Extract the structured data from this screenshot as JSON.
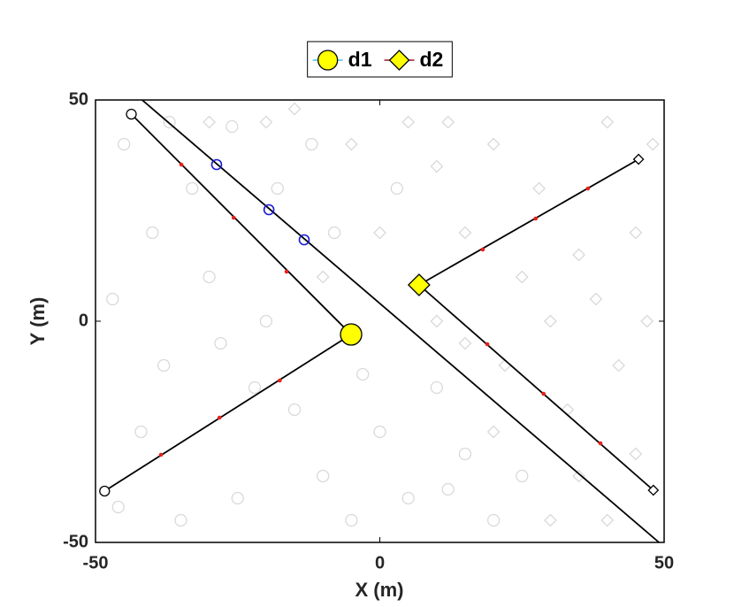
{
  "chart_data": {
    "type": "scatter",
    "xlabel": "X (m)",
    "ylabel": "Y (m)",
    "xlim": [
      -50,
      50
    ],
    "ylim": [
      -50,
      50
    ],
    "xticks": [
      -50,
      0,
      50
    ],
    "yticks": [
      -50,
      0,
      50
    ],
    "legend": "north",
    "background": [
      {
        "marker": "circle",
        "color": "#d9d9d9",
        "x": [
          -45,
          -40,
          -47,
          -38,
          -42,
          -35,
          -30,
          -28,
          -25,
          -20,
          -15,
          -10,
          -5,
          -18,
          -12,
          0,
          5,
          10,
          15,
          20,
          -33,
          -22,
          -8,
          3,
          -46,
          -37,
          12,
          -3,
          25,
          -26
        ],
        "y": [
          40,
          20,
          5,
          -10,
          -25,
          -45,
          10,
          -5,
          -40,
          0,
          -20,
          -35,
          -45,
          30,
          40,
          -25,
          -40,
          -15,
          -30,
          -45,
          30,
          -15,
          20,
          30,
          -42,
          45,
          -38,
          -12,
          -35,
          44
        ]
      },
      {
        "marker": "diamond",
        "color": "#d9d9d9",
        "x": [
          -30,
          -15,
          -5,
          5,
          10,
          15,
          20,
          25,
          30,
          35,
          40,
          45,
          47,
          42,
          35,
          30,
          20,
          15,
          45,
          38,
          0,
          -10,
          28,
          10,
          33,
          48,
          22,
          -20,
          12,
          40
        ],
        "y": [
          45,
          48,
          40,
          45,
          35,
          20,
          40,
          10,
          0,
          15,
          45,
          20,
          0,
          -10,
          -35,
          -45,
          -25,
          -5,
          -30,
          5,
          20,
          10,
          30,
          0,
          -20,
          40,
          -10,
          45,
          45,
          -45
        ]
      }
    ],
    "lines": [
      {
        "color": "#000000",
        "end_marker": "circle",
        "x": [
          -5.05,
          -43.7
        ],
        "y": [
          -3,
          46.8
        ]
      },
      {
        "color": "#000000",
        "end_marker": "circle",
        "x": [
          -5.05,
          -48.4
        ],
        "y": [
          -3,
          -38.4
        ]
      },
      {
        "color": "#000000",
        "end_marker": "diamond",
        "x": [
          6.9,
          45.5
        ],
        "y": [
          8.2,
          36.6
        ]
      },
      {
        "color": "#000000",
        "end_marker": "diamond",
        "x": [
          6.9,
          48.1
        ],
        "y": [
          8.2,
          -38.2
        ]
      },
      {
        "color": "#000000",
        "x": [
          -41.8,
          49.1
        ],
        "y": [
          50,
          -50
        ]
      }
    ],
    "points": [
      {
        "marker": "dot",
        "color": "#e8201a",
        "x": [
          -34.9,
          -25.7,
          -16.4,
          -17.6,
          -28.2,
          -38.5,
          18.1,
          27.4,
          36.6,
          18.9,
          28.8,
          38.8
        ],
        "y": [
          35.4,
          23.4,
          11.2,
          -13.4,
          -21.8,
          -30.2,
          16.2,
          23.2,
          30,
          -5.2,
          -16.4,
          -27.6
        ]
      },
      {
        "marker": "ring",
        "color": "#1a1ad6",
        "x": [
          -28.7,
          -19.5,
          -13.3
        ],
        "y": [
          35.4,
          25.2,
          18.4
        ]
      }
    ],
    "series": [
      {
        "name": "d1",
        "marker": "circle",
        "color": "#ffff00",
        "line_color": "#4dbeee",
        "x": [
          -5.05
        ],
        "y": [
          -3
        ]
      },
      {
        "name": "d2",
        "marker": "diamond",
        "color": "#ffff00",
        "line_color": "#a2142f",
        "x": [
          6.9
        ],
        "y": [
          8.2
        ]
      }
    ]
  }
}
